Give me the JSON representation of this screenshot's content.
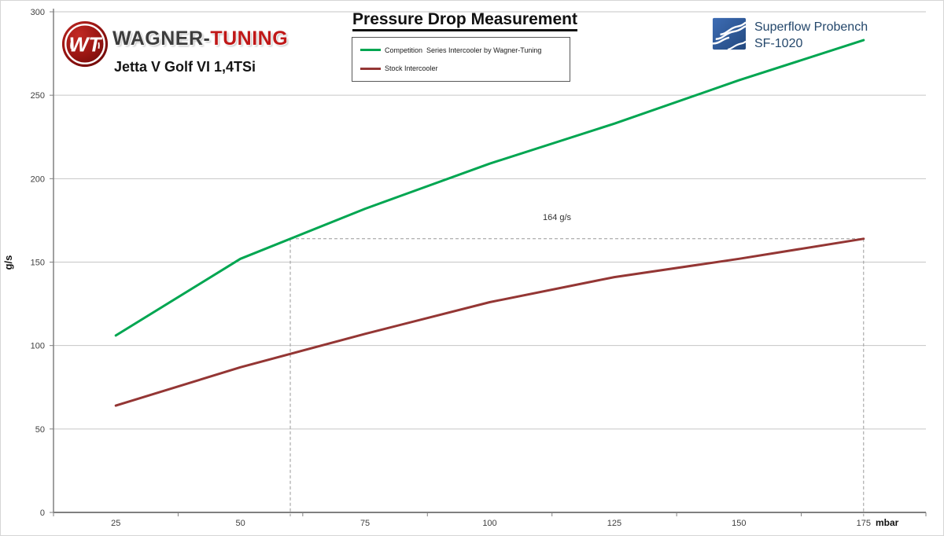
{
  "header": {
    "title": "Pressure Drop Measurement",
    "brand": {
      "wagner": "WAGNER-",
      "tuning": "TUNING"
    },
    "vehicle": "Jetta V Golf VI 1,4TSi",
    "bench": {
      "line1": "Superflow Probench",
      "line2": "SF-1020"
    }
  },
  "legend": {
    "items": [
      {
        "label": "Competition  Series Intercooler by Wagner-Tuning",
        "color": "#00A651"
      },
      {
        "label": "Stock Intercooler",
        "color": "#943634"
      }
    ]
  },
  "chart_data": {
    "type": "line",
    "x": [
      25,
      50,
      75,
      100,
      125,
      150,
      175
    ],
    "xlabel": "mbar",
    "ylabel": "g/s",
    "ylim": [
      0,
      300
    ],
    "ytick_step": 50,
    "grid": "horizontal",
    "legend_position": "top-center",
    "series": [
      {
        "name": "Competition Series Intercooler by Wagner-Tuning",
        "color": "#00A651",
        "values": [
          106,
          152,
          182,
          209,
          233,
          259,
          283
        ]
      },
      {
        "name": "Stock Intercooler",
        "color": "#943634",
        "values": [
          64,
          87,
          107,
          126,
          141,
          152,
          164
        ]
      }
    ],
    "annotation": {
      "label": "164 g/s",
      "value": 164,
      "style": "dashed reference lines from competition curve and last stock point down to x-axis"
    }
  },
  "colors": {
    "gridline": "#c6c6c6",
    "axis": "#808080",
    "dashed": "#999999",
    "tick_text": "#404040"
  }
}
